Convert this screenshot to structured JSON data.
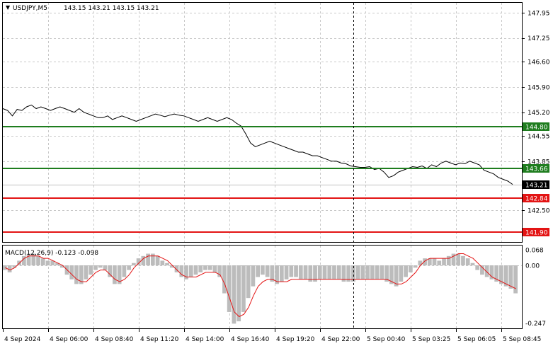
{
  "header": {
    "menu_arrow": "▼",
    "symbol": "USDJPY,M5",
    "ohlc": "143.15 143.21 143.15 143.21"
  },
  "macd_header": {
    "label": "MACD(12,26,9) -0.123 -0.098"
  },
  "colors": {
    "price_line": "#000000",
    "support_resistance_green": "#1e7d1e",
    "level_red": "#e31414",
    "macd_hist": "#bcbcbc",
    "macd_signal": "#e31414",
    "grid": "#c8c8c8",
    "current_price_bg": "#000000",
    "separator": "#000000"
  },
  "chart_data": [
    {
      "type": "line",
      "title": "USDJPY,M5",
      "y_axis_labels": [
        "147.95",
        "147.25",
        "146.60",
        "145.90",
        "145.20",
        "144.55",
        "143.85",
        "143.21",
        "142.50",
        "141.90"
      ],
      "ylim": [
        141.62,
        148.22
      ],
      "x_tick_labels": [
        "4 Sep 2024",
        "4 Sep 06:00",
        "4 Sep 08:40",
        "4 Sep 11:20",
        "4 Sep 14:00",
        "4 Sep 16:40",
        "4 Sep 19:20",
        "4 Sep 22:00",
        "5 Sep 00:40",
        "5 Sep 03:25",
        "5 Sep 06:05",
        "5 Sep 08:45"
      ],
      "series": [
        {
          "values": [
            145.3,
            145.25,
            145.1,
            145.28,
            145.25,
            145.35,
            145.4,
            145.3,
            145.35,
            145.3,
            145.25,
            145.3,
            145.35,
            145.3,
            145.25,
            145.2,
            145.3,
            145.2,
            145.15,
            145.1,
            145.05,
            145.05,
            145.1,
            145.0,
            145.05,
            145.1,
            145.05,
            145.0,
            144.95,
            145.0,
            145.05,
            145.1,
            145.15,
            145.12,
            145.08,
            145.12,
            145.15,
            145.12,
            145.1,
            145.05,
            145.0,
            144.95,
            145.0,
            145.05,
            145.0,
            144.95,
            145.0,
            145.05,
            145.0,
            144.9,
            144.82,
            144.6,
            144.35,
            144.25,
            144.3,
            144.35,
            144.4,
            144.35,
            144.3,
            144.25,
            144.2,
            144.15,
            144.1,
            144.1,
            144.05,
            144.0,
            144.0,
            143.95,
            143.9,
            143.85,
            143.85,
            143.8,
            143.78,
            143.72,
            143.7,
            143.68,
            143.68,
            143.7,
            143.62,
            143.65,
            143.55,
            143.4,
            143.45,
            143.55,
            143.6,
            143.65,
            143.7,
            143.68,
            143.72,
            143.65,
            143.75,
            143.7,
            143.8,
            143.85,
            143.8,
            143.75,
            143.8,
            143.78,
            143.85,
            143.8,
            143.75,
            143.6,
            143.55,
            143.5,
            143.4,
            143.35,
            143.3,
            143.21
          ],
          "last": 143.21
        }
      ],
      "levels": [
        {
          "label": "144.80",
          "value": 144.8,
          "color": "green"
        },
        {
          "label": "143.66",
          "value": 143.66,
          "color": "green"
        },
        {
          "label": "142.84",
          "value": 142.84,
          "color": "red"
        },
        {
          "label": "141.90",
          "value": 141.9,
          "color": "red"
        }
      ],
      "current_price_label": "143.21",
      "grid": true
    },
    {
      "type": "bar",
      "title": "MACD(12,26,9)",
      "y_axis_labels": [
        "0.068",
        "0.00",
        "-0.247"
      ],
      "ylim": [
        -0.27,
        0.085
      ],
      "histogram": [
        -0.02,
        -0.03,
        -0.01,
        0.02,
        0.04,
        0.05,
        0.05,
        0.04,
        0.03,
        0.02,
        0.02,
        0.01,
        -0.01,
        -0.04,
        -0.06,
        -0.08,
        -0.08,
        -0.06,
        -0.04,
        -0.02,
        -0.01,
        -0.02,
        -0.05,
        -0.08,
        -0.08,
        -0.05,
        -0.02,
        0.01,
        0.03,
        0.04,
        0.05,
        0.05,
        0.04,
        0.02,
        0.01,
        -0.01,
        -0.03,
        -0.05,
        -0.06,
        -0.05,
        -0.04,
        -0.03,
        -0.02,
        -0.02,
        -0.03,
        -0.05,
        -0.12,
        -0.2,
        -0.25,
        -0.24,
        -0.2,
        -0.14,
        -0.09,
        -0.05,
        -0.04,
        -0.05,
        -0.07,
        -0.08,
        -0.07,
        -0.06,
        -0.05,
        -0.05,
        -0.06,
        -0.06,
        -0.07,
        -0.07,
        -0.06,
        -0.06,
        -0.06,
        -0.06,
        -0.06,
        -0.07,
        -0.07,
        -0.07,
        -0.06,
        -0.06,
        -0.06,
        -0.06,
        -0.06,
        -0.06,
        -0.07,
        -0.08,
        -0.09,
        -0.07,
        -0.05,
        -0.03,
        -0.01,
        0.02,
        0.03,
        0.03,
        0.03,
        0.02,
        0.03,
        0.04,
        0.05,
        0.05,
        0.04,
        0.03,
        0.01,
        -0.02,
        -0.04,
        -0.05,
        -0.06,
        -0.07,
        -0.08,
        -0.09,
        -0.1,
        -0.12
      ],
      "signal": [
        -0.01,
        -0.02,
        -0.01,
        0.01,
        0.03,
        0.04,
        0.04,
        0.04,
        0.03,
        0.03,
        0.02,
        0.01,
        0.0,
        -0.02,
        -0.04,
        -0.06,
        -0.07,
        -0.07,
        -0.05,
        -0.03,
        -0.02,
        -0.02,
        -0.04,
        -0.06,
        -0.07,
        -0.06,
        -0.04,
        -0.01,
        0.01,
        0.03,
        0.04,
        0.04,
        0.04,
        0.03,
        0.02,
        0.0,
        -0.02,
        -0.04,
        -0.05,
        -0.05,
        -0.05,
        -0.04,
        -0.03,
        -0.03,
        -0.03,
        -0.04,
        -0.08,
        -0.14,
        -0.2,
        -0.22,
        -0.21,
        -0.18,
        -0.13,
        -0.09,
        -0.07,
        -0.06,
        -0.06,
        -0.07,
        -0.07,
        -0.07,
        -0.06,
        -0.06,
        -0.06,
        -0.06,
        -0.06,
        -0.06,
        -0.06,
        -0.06,
        -0.06,
        -0.06,
        -0.06,
        -0.06,
        -0.06,
        -0.06,
        -0.06,
        -0.06,
        -0.06,
        -0.06,
        -0.06,
        -0.06,
        -0.06,
        -0.07,
        -0.08,
        -0.08,
        -0.07,
        -0.05,
        -0.03,
        0.0,
        0.02,
        0.03,
        0.03,
        0.03,
        0.03,
        0.03,
        0.04,
        0.05,
        0.05,
        0.04,
        0.03,
        0.01,
        -0.01,
        -0.03,
        -0.05,
        -0.06,
        -0.07,
        -0.08,
        -0.09,
        -0.1
      ],
      "grid": true
    }
  ]
}
